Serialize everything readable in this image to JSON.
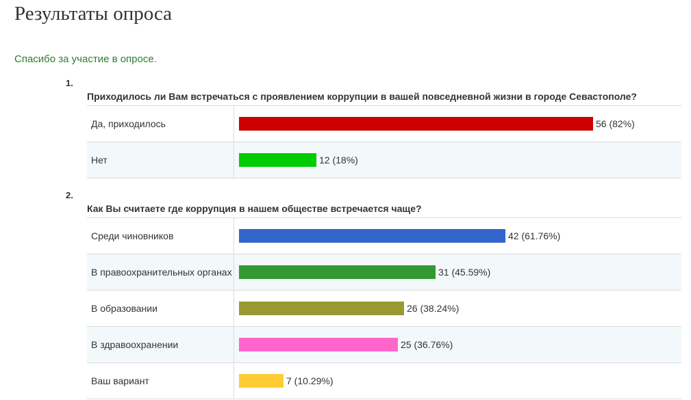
{
  "page": {
    "title": "Результаты опроса",
    "thanks": "Спасибо за участие в опросе."
  },
  "questions": [
    {
      "number": "1.",
      "text": "Приходилось ли Вам встречаться с проявлением коррупции в вашей повседневной жизни в городе Севастополе?",
      "answers": [
        {
          "label": "Да, приходилось",
          "count": 56,
          "percent": 82,
          "value_text": "56 (82%)",
          "color": "#cc0000"
        },
        {
          "label": "Нет",
          "count": 12,
          "percent": 18,
          "value_text": "12 (18%)",
          "color": "#00cc00"
        }
      ]
    },
    {
      "number": "2.",
      "text": "Как Вы считаете где коррупция в нашем обществе встречается чаще?",
      "answers": [
        {
          "label": "Среди чиновников",
          "count": 42,
          "percent": 61.76,
          "value_text": "42 (61.76%)",
          "color": "#3366cc"
        },
        {
          "label": "В правоохранительных органах",
          "count": 31,
          "percent": 45.59,
          "value_text": "31 (45.59%)",
          "color": "#339933"
        },
        {
          "label": "В образовании",
          "count": 26,
          "percent": 38.24,
          "value_text": "26 (38.24%)",
          "color": "#999933"
        },
        {
          "label": "В здравоохранении",
          "count": 25,
          "percent": 36.76,
          "value_text": "25 (36.76%)",
          "color": "#ff66cc"
        },
        {
          "label": "Ваш вариант",
          "count": 7,
          "percent": 10.29,
          "value_text": "7 (10.29%)",
          "color": "#ffcc33"
        }
      ]
    }
  ]
}
